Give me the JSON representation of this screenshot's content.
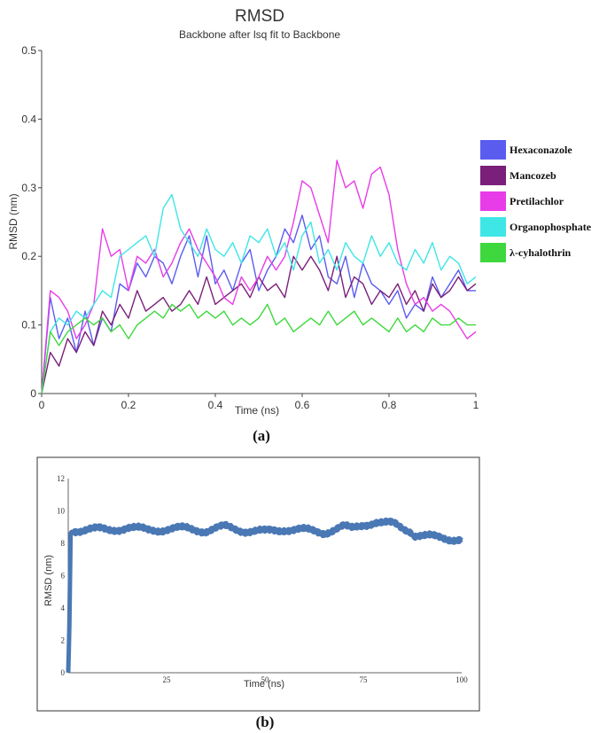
{
  "chart_a": {
    "title": "RMSD",
    "subtitle": "Backbone after lsq fit to Backbone",
    "xlabel": "Time (ns)",
    "ylabel": "RMSD (nm)",
    "caption": "(a)",
    "xlim": [
      0,
      1
    ],
    "ylim": [
      0,
      0.5
    ],
    "xticks": [
      "0",
      "0.2",
      "0.4",
      "0.6",
      "0.8",
      "1"
    ],
    "yticks": [
      "0",
      "0.1",
      "0.2",
      "0.3",
      "0.4",
      "0.5"
    ],
    "legend_position": "right",
    "legend": [
      {
        "name": "Hexaconazole",
        "color": "#5a5cf0"
      },
      {
        "name": "Mancozeb",
        "color": "#7a1f7a"
      },
      {
        "name": "Pretilachlor",
        "color": "#e83ce8"
      },
      {
        "name": "Organophosphate",
        "color": "#3ee6e6"
      },
      {
        "name": "λ-cyhalothrin",
        "color": "#3ed83e"
      }
    ]
  },
  "chart_b": {
    "xlabel": "Time (ns)",
    "ylabel": "RMSD (nm)",
    "caption": "(b)",
    "xlim": [
      0,
      100
    ],
    "ylim": [
      0,
      12
    ],
    "xticks": [
      "25",
      "50",
      "75",
      "100"
    ],
    "yticks": [
      "0",
      "2",
      "4",
      "6",
      "8",
      "10",
      "12"
    ],
    "color": "#4a78b4"
  },
  "chart_data": [
    {
      "type": "line",
      "title": "RMSD",
      "subtitle": "Backbone after lsq fit to Backbone",
      "xlabel": "Time (ns)",
      "ylabel": "RMSD (nm)",
      "xlim": [
        0,
        1
      ],
      "ylim": [
        0,
        0.5
      ],
      "grid": false,
      "legend": "right",
      "series": [
        {
          "name": "Hexaconazole",
          "color": "#5a5cf0",
          "x": [
            0,
            0.02,
            0.04,
            0.06,
            0.08,
            0.1,
            0.12,
            0.14,
            0.16,
            0.18,
            0.2,
            0.22,
            0.24,
            0.26,
            0.28,
            0.3,
            0.32,
            0.34,
            0.36,
            0.38,
            0.4,
            0.42,
            0.44,
            0.46,
            0.48,
            0.5,
            0.52,
            0.54,
            0.56,
            0.58,
            0.6,
            0.62,
            0.64,
            0.66,
            0.68,
            0.7,
            0.72,
            0.74,
            0.76,
            0.78,
            0.8,
            0.82,
            0.84,
            0.86,
            0.88,
            0.9,
            0.92,
            0.94,
            0.96,
            0.98,
            1.0
          ],
          "y": [
            0.0,
            0.14,
            0.08,
            0.11,
            0.06,
            0.12,
            0.07,
            0.11,
            0.09,
            0.16,
            0.15,
            0.19,
            0.17,
            0.2,
            0.19,
            0.16,
            0.2,
            0.23,
            0.17,
            0.23,
            0.16,
            0.18,
            0.15,
            0.19,
            0.21,
            0.15,
            0.18,
            0.2,
            0.24,
            0.22,
            0.26,
            0.21,
            0.23,
            0.17,
            0.16,
            0.2,
            0.14,
            0.19,
            0.16,
            0.15,
            0.13,
            0.15,
            0.11,
            0.13,
            0.12,
            0.17,
            0.14,
            0.16,
            0.18,
            0.15,
            0.15
          ]
        },
        {
          "name": "Mancozeb",
          "color": "#7a1f7a",
          "x": [
            0,
            0.02,
            0.04,
            0.06,
            0.08,
            0.1,
            0.12,
            0.14,
            0.16,
            0.18,
            0.2,
            0.22,
            0.24,
            0.26,
            0.28,
            0.3,
            0.32,
            0.34,
            0.36,
            0.38,
            0.4,
            0.42,
            0.44,
            0.46,
            0.48,
            0.5,
            0.52,
            0.54,
            0.56,
            0.58,
            0.6,
            0.62,
            0.64,
            0.66,
            0.68,
            0.7,
            0.72,
            0.74,
            0.76,
            0.78,
            0.8,
            0.82,
            0.84,
            0.86,
            0.88,
            0.9,
            0.92,
            0.94,
            0.96,
            0.98,
            1.0
          ],
          "y": [
            0.0,
            0.06,
            0.04,
            0.08,
            0.06,
            0.09,
            0.07,
            0.12,
            0.1,
            0.13,
            0.11,
            0.15,
            0.12,
            0.13,
            0.14,
            0.12,
            0.13,
            0.15,
            0.13,
            0.17,
            0.13,
            0.14,
            0.15,
            0.16,
            0.14,
            0.17,
            0.15,
            0.16,
            0.14,
            0.2,
            0.18,
            0.2,
            0.18,
            0.15,
            0.2,
            0.14,
            0.17,
            0.16,
            0.13,
            0.15,
            0.14,
            0.16,
            0.13,
            0.15,
            0.12,
            0.16,
            0.14,
            0.15,
            0.17,
            0.15,
            0.16
          ]
        },
        {
          "name": "Pretilachlor",
          "color": "#e83ce8",
          "x": [
            0,
            0.02,
            0.04,
            0.06,
            0.08,
            0.1,
            0.12,
            0.14,
            0.16,
            0.18,
            0.2,
            0.22,
            0.24,
            0.26,
            0.28,
            0.3,
            0.32,
            0.34,
            0.36,
            0.38,
            0.4,
            0.42,
            0.44,
            0.46,
            0.48,
            0.5,
            0.52,
            0.54,
            0.56,
            0.58,
            0.6,
            0.62,
            0.64,
            0.66,
            0.68,
            0.7,
            0.72,
            0.74,
            0.76,
            0.78,
            0.8,
            0.82,
            0.84,
            0.86,
            0.88,
            0.9,
            0.92,
            0.94,
            0.96,
            0.98,
            1.0
          ],
          "y": [
            0.0,
            0.15,
            0.14,
            0.12,
            0.08,
            0.1,
            0.13,
            0.24,
            0.2,
            0.21,
            0.15,
            0.2,
            0.19,
            0.21,
            0.17,
            0.19,
            0.22,
            0.24,
            0.21,
            0.19,
            0.17,
            0.14,
            0.13,
            0.17,
            0.15,
            0.17,
            0.2,
            0.18,
            0.2,
            0.25,
            0.31,
            0.3,
            0.26,
            0.22,
            0.34,
            0.3,
            0.31,
            0.27,
            0.32,
            0.33,
            0.29,
            0.21,
            0.16,
            0.13,
            0.14,
            0.12,
            0.13,
            0.12,
            0.1,
            0.08,
            0.09
          ]
        },
        {
          "name": "Organophosphate",
          "color": "#3ee6e6",
          "x": [
            0,
            0.02,
            0.04,
            0.06,
            0.08,
            0.1,
            0.12,
            0.14,
            0.16,
            0.18,
            0.2,
            0.22,
            0.24,
            0.26,
            0.28,
            0.3,
            0.32,
            0.34,
            0.36,
            0.38,
            0.4,
            0.42,
            0.44,
            0.46,
            0.48,
            0.5,
            0.52,
            0.54,
            0.56,
            0.58,
            0.6,
            0.62,
            0.64,
            0.66,
            0.68,
            0.7,
            0.72,
            0.74,
            0.76,
            0.78,
            0.8,
            0.82,
            0.84,
            0.86,
            0.88,
            0.9,
            0.92,
            0.94,
            0.96,
            0.98,
            1.0
          ],
          "y": [
            0.0,
            0.09,
            0.11,
            0.1,
            0.12,
            0.11,
            0.13,
            0.15,
            0.14,
            0.2,
            0.21,
            0.22,
            0.23,
            0.2,
            0.27,
            0.29,
            0.24,
            0.22,
            0.2,
            0.24,
            0.21,
            0.2,
            0.22,
            0.19,
            0.23,
            0.22,
            0.24,
            0.2,
            0.22,
            0.18,
            0.23,
            0.25,
            0.19,
            0.21,
            0.18,
            0.22,
            0.2,
            0.19,
            0.23,
            0.2,
            0.22,
            0.19,
            0.18,
            0.21,
            0.19,
            0.22,
            0.18,
            0.2,
            0.19,
            0.16,
            0.17
          ]
        },
        {
          "name": "λ-cyhalothrin",
          "color": "#3ed83e",
          "x": [
            0,
            0.02,
            0.04,
            0.06,
            0.08,
            0.1,
            0.12,
            0.14,
            0.16,
            0.18,
            0.2,
            0.22,
            0.24,
            0.26,
            0.28,
            0.3,
            0.32,
            0.34,
            0.36,
            0.38,
            0.4,
            0.42,
            0.44,
            0.46,
            0.48,
            0.5,
            0.52,
            0.54,
            0.56,
            0.58,
            0.6,
            0.62,
            0.64,
            0.66,
            0.68,
            0.7,
            0.72,
            0.74,
            0.76,
            0.78,
            0.8,
            0.82,
            0.84,
            0.86,
            0.88,
            0.9,
            0.92,
            0.94,
            0.96,
            0.98,
            1.0
          ],
          "y": [
            0.0,
            0.09,
            0.07,
            0.09,
            0.1,
            0.11,
            0.1,
            0.11,
            0.09,
            0.1,
            0.08,
            0.1,
            0.11,
            0.12,
            0.11,
            0.13,
            0.12,
            0.13,
            0.11,
            0.12,
            0.11,
            0.12,
            0.1,
            0.11,
            0.1,
            0.11,
            0.13,
            0.1,
            0.11,
            0.09,
            0.1,
            0.11,
            0.1,
            0.12,
            0.1,
            0.11,
            0.12,
            0.1,
            0.11,
            0.1,
            0.09,
            0.11,
            0.09,
            0.1,
            0.09,
            0.11,
            0.1,
            0.1,
            0.11,
            0.1,
            0.1
          ]
        }
      ]
    },
    {
      "type": "line",
      "xlabel": "Time (ns)",
      "ylabel": "RMSD (nm)",
      "xlim": [
        0,
        100
      ],
      "ylim": [
        0,
        12
      ],
      "grid": false,
      "series": [
        {
          "color": "#4a78b4",
          "x": [
            0,
            0.3,
            0.6,
            1,
            5,
            10,
            15,
            20,
            25,
            30,
            35,
            40,
            45,
            50,
            55,
            60,
            65,
            70,
            72,
            75,
            78,
            80,
            83,
            85,
            87,
            88,
            90,
            95,
            100
          ],
          "y": [
            0,
            3,
            8.6,
            8.8,
            8.9,
            8.8,
            9.0,
            8.8,
            8.9,
            8.9,
            8.8,
            9.0,
            8.8,
            8.7,
            8.9,
            8.8,
            8.7,
            9.0,
            8.9,
            9.2,
            9.3,
            9.2,
            9.2,
            9.0,
            8.8,
            8.5,
            8.4,
            8.4,
            8.2
          ]
        }
      ]
    }
  ]
}
